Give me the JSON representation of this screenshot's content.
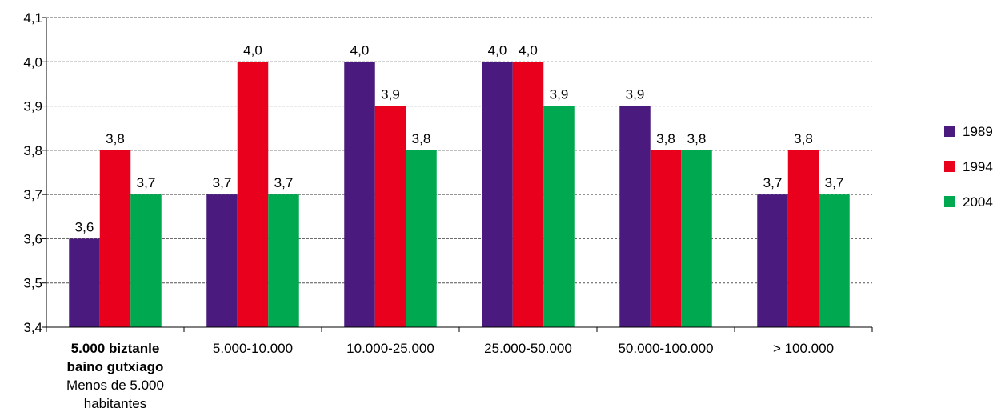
{
  "chart_data": {
    "type": "bar",
    "categories": [
      {
        "label_bold": "5.000 biztanle baino gutxiago",
        "label_lines_bold": [
          "5.000 biztanle",
          "baino gutxiago"
        ],
        "label_lines": [
          "Menos de 5.000",
          "habitantes"
        ]
      },
      {
        "label_lines": [
          "5.000-10.000"
        ]
      },
      {
        "label_lines": [
          "10.000-25.000"
        ]
      },
      {
        "label_lines": [
          "25.000-50.000"
        ]
      },
      {
        "label_lines": [
          "50.000-100.000"
        ]
      },
      {
        "label_lines": [
          "> 100.000"
        ]
      }
    ],
    "series": [
      {
        "name": "1989",
        "color": "#4b1a7e",
        "values": [
          3.6,
          3.7,
          4.0,
          4.0,
          3.9,
          3.7
        ],
        "labels": [
          "3,6",
          "3,7",
          "4,0",
          "4,0",
          "3,9",
          "3,7"
        ]
      },
      {
        "name": "1994",
        "color": "#e8001c",
        "values": [
          3.8,
          4.0,
          3.9,
          4.0,
          3.8,
          3.8
        ],
        "labels": [
          "3,8",
          "4,0",
          "3,9",
          "4,0",
          "3,8",
          "3,8"
        ]
      },
      {
        "name": "2004",
        "color": "#00a84f",
        "values": [
          3.7,
          3.7,
          3.8,
          3.9,
          3.8,
          3.7
        ],
        "labels": [
          "3,7",
          "3,7",
          "3,8",
          "3,9",
          "3,8",
          "3,7"
        ]
      }
    ],
    "ylim": [
      3.4,
      4.1
    ],
    "yticks": [
      3.4,
      3.5,
      3.6,
      3.7,
      3.8,
      3.9,
      4.0,
      4.1
    ],
    "ytick_labels": [
      "3,4",
      "3,5",
      "3,6",
      "3,7",
      "3,8",
      "3,9",
      "4,0",
      "4,1"
    ],
    "grid": "horizontal dashed",
    "legend_position": "right"
  }
}
